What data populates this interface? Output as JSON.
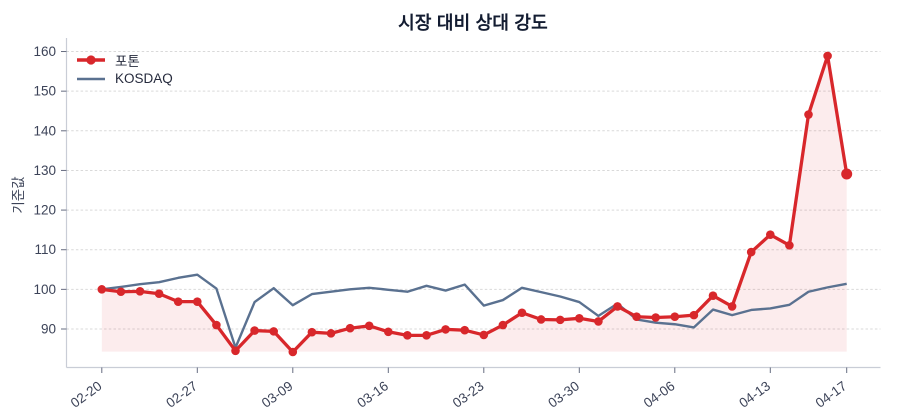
{
  "title": "시장 대비 상대 강도",
  "y_axis_title": "기준값",
  "legend": {
    "series1_label": "포톤",
    "series2_label": "KOSDAQ"
  },
  "colors": {
    "series1": "#d8272b",
    "series2": "#5a7190",
    "area_fill": "rgba(216,39,43,0.085)",
    "grid": "#d9d9d9",
    "axis_line": "#c9cdd6",
    "tick_mark": "#666c80",
    "tick_label": "#3c4358",
    "title": "#131c31"
  },
  "chart_data": {
    "type": "line",
    "title": "시장 대비 상대 강도",
    "xlabel": "",
    "ylabel": "기준값",
    "grid": "horizontal-dashed",
    "legend_position": "top-left",
    "y_ticks": [
      90,
      100,
      110,
      120,
      130,
      140,
      150,
      160
    ],
    "ylim": [
      80.4,
      163.3
    ],
    "x_tick_labels": [
      "02-20",
      "02-27",
      "03-09",
      "03-16",
      "03-23",
      "03-30",
      "04-06",
      "04-13",
      "04-17"
    ],
    "x_tick_indices": [
      0,
      5,
      10,
      15,
      20,
      25,
      30,
      35,
      39
    ],
    "fill_baseline": 84.3,
    "series": [
      {
        "name": "포톤",
        "values": [
          100.0,
          99.4,
          99.5,
          98.9,
          96.9,
          96.9,
          91.0,
          84.5,
          89.6,
          89.4,
          84.2,
          89.2,
          88.9,
          90.2,
          90.8,
          89.3,
          88.4,
          88.4,
          89.9,
          89.7,
          88.5,
          91.0,
          94.1,
          92.4,
          92.3,
          92.7,
          91.9,
          95.7,
          93.1,
          92.9,
          93.1,
          93.5,
          98.4,
          95.7,
          109.4,
          113.8,
          111.1,
          144.1,
          158.9,
          129.1
        ]
      },
      {
        "name": "KOSDAQ",
        "values": [
          100.0,
          100.6,
          101.3,
          101.8,
          102.9,
          103.7,
          100.2,
          85.3,
          96.8,
          100.3,
          96.0,
          98.8,
          99.4,
          100.0,
          100.4,
          99.9,
          99.4,
          100.9,
          99.7,
          101.2,
          95.9,
          97.3,
          100.4,
          99.3,
          98.2,
          96.8,
          93.3,
          96.4,
          92.4,
          91.6,
          91.2,
          90.4,
          94.9,
          93.5,
          94.8,
          95.2,
          96.1,
          99.4,
          100.5,
          101.4
        ]
      }
    ]
  }
}
